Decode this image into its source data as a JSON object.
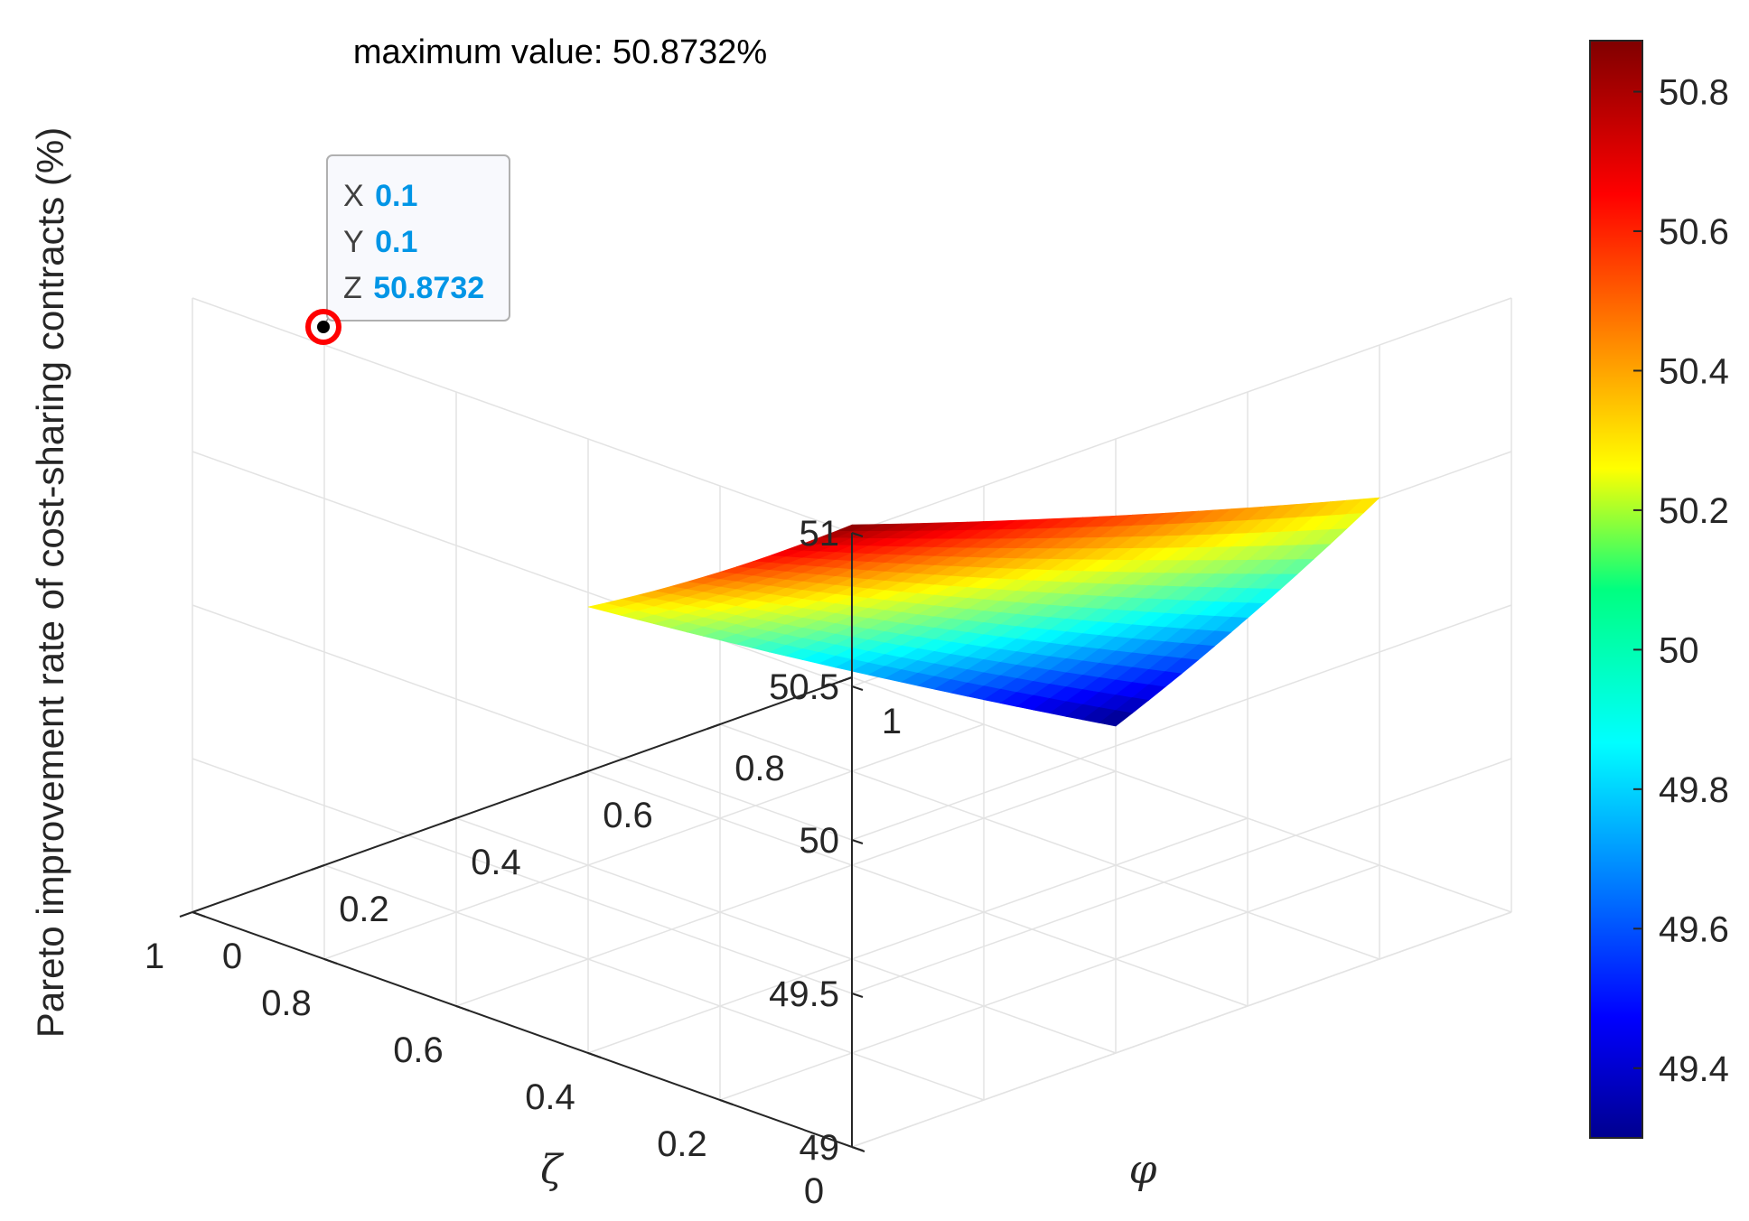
{
  "title": "maximum value: 50.8732%",
  "chart_data": {
    "type": "surface",
    "title": "maximum value: 50.8732%",
    "xlabel": "ζ",
    "ylabel": "φ",
    "zlabel": "Pareto improvement rate of cost-sharing contracts (%)",
    "xlim": [
      0,
      1
    ],
    "ylim": [
      0,
      1
    ],
    "zlim": [
      49,
      51
    ],
    "x_ticks": [
      "0",
      "0.2",
      "0.4",
      "0.6",
      "0.8",
      "1"
    ],
    "y_ticks": [
      "0",
      "0.2",
      "0.4",
      "0.6",
      "0.8",
      "1"
    ],
    "z_ticks": [
      "49",
      "49.5",
      "50",
      "50.5",
      "51"
    ],
    "x_range": [
      0.1,
      0.5
    ],
    "y_range": [
      0.1,
      0.9
    ],
    "corner_values": [
      {
        "x": 0.1,
        "y": 0.1,
        "z": 50.8732
      },
      {
        "x": 0.1,
        "y": 0.9,
        "z": 50.35
      },
      {
        "x": 0.5,
        "y": 0.1,
        "z": 50.3
      },
      {
        "x": 0.5,
        "y": 0.9,
        "z": 49.3
      }
    ],
    "colormap": "jet",
    "clim": [
      49.3,
      50.8732
    ],
    "grid": true
  },
  "colorbar": {
    "ticks": [
      "49.4",
      "49.6",
      "49.8",
      "50",
      "50.2",
      "50.4",
      "50.6",
      "50.8"
    ],
    "tick_values": [
      49.4,
      49.6,
      49.8,
      50.0,
      50.2,
      50.4,
      50.6,
      50.8
    ],
    "range": [
      49.3,
      50.8732
    ]
  },
  "datatip": {
    "x_key": "X",
    "x_value": "0.1",
    "y_key": "Y",
    "y_value": "0.1",
    "z_key": "Z",
    "z_value": "50.8732",
    "marker_color": "#ff0000",
    "value_color": "#0095e6"
  }
}
